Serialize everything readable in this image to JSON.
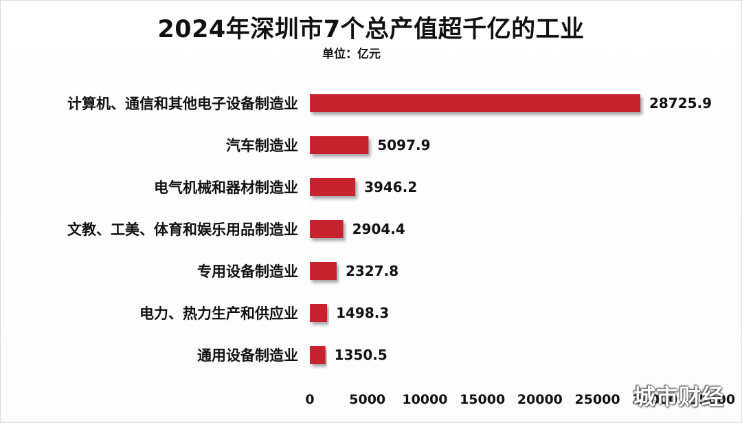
{
  "title": "2024年深圳市7个总产值超千亿的工业",
  "unit": "单位：亿元",
  "watermark": "城市财经",
  "chart_data": {
    "type": "bar",
    "orientation": "horizontal",
    "categories": [
      "计算机、通信和其他电子设备制造业",
      "汽车制造业",
      "电气机械和器材制造业",
      "文教、工美、体育和娱乐用品制造业",
      "专用设备制造业",
      "电力、热力生产和供应业",
      "通用设备制造业"
    ],
    "values": [
      28725.9,
      5097.9,
      3946.2,
      2904.4,
      2327.8,
      1498.3,
      1350.5
    ],
    "value_labels": [
      "28725.9",
      "5097.9",
      "3946.2",
      "2904.4",
      "2327.8",
      "1498.3",
      "1350.5"
    ],
    "xticks": [
      "0",
      "5000",
      "10000",
      "15000",
      "20000",
      "25000",
      "30000",
      "35000"
    ],
    "xlim": [
      0,
      35000
    ],
    "bar_color": "#c8202f",
    "grid": false,
    "legend": "none"
  }
}
